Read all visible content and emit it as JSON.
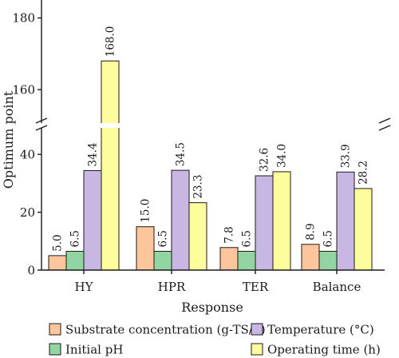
{
  "chart_data": {
    "type": "bar",
    "title": "",
    "xlabel": "Response",
    "ylabel": "Optimum point",
    "categories": [
      "HY",
      "HPR",
      "TER",
      "Balance"
    ],
    "series": [
      {
        "name": "Substrate concentration (g-TS/L)",
        "color": "#fcc59b",
        "values": [
          5.0,
          15.0,
          7.8,
          8.9
        ],
        "labels": [
          "5.0",
          "15.0",
          "7.8",
          "8.9"
        ]
      },
      {
        "name": "Initial pH",
        "color": "#92d4a2",
        "values": [
          6.5,
          6.5,
          6.5,
          6.5
        ],
        "labels": [
          "6.5",
          "6.5",
          "6.5",
          "6.5"
        ]
      },
      {
        "name": "Temperature (°C)",
        "color": "#c8b7e3",
        "values": [
          34.4,
          34.5,
          32.6,
          33.9
        ],
        "labels": [
          "34.4",
          "34.5",
          "32.6",
          "33.9"
        ]
      },
      {
        "name": "Operating time (h)",
        "color": "#fdfd9e",
        "values": [
          168.0,
          23.3,
          34.0,
          28.2
        ],
        "labels": [
          "168.0",
          "23.3",
          "34.0",
          "28.2"
        ]
      }
    ],
    "axis_break": {
      "lower": [
        0,
        50
      ],
      "upper": [
        150,
        185
      ]
    },
    "yticks_lower": [
      "0",
      "20",
      "40"
    ],
    "yticks_upper": [
      "160",
      "180"
    ],
    "grid": false,
    "legend_position": "bottom"
  }
}
